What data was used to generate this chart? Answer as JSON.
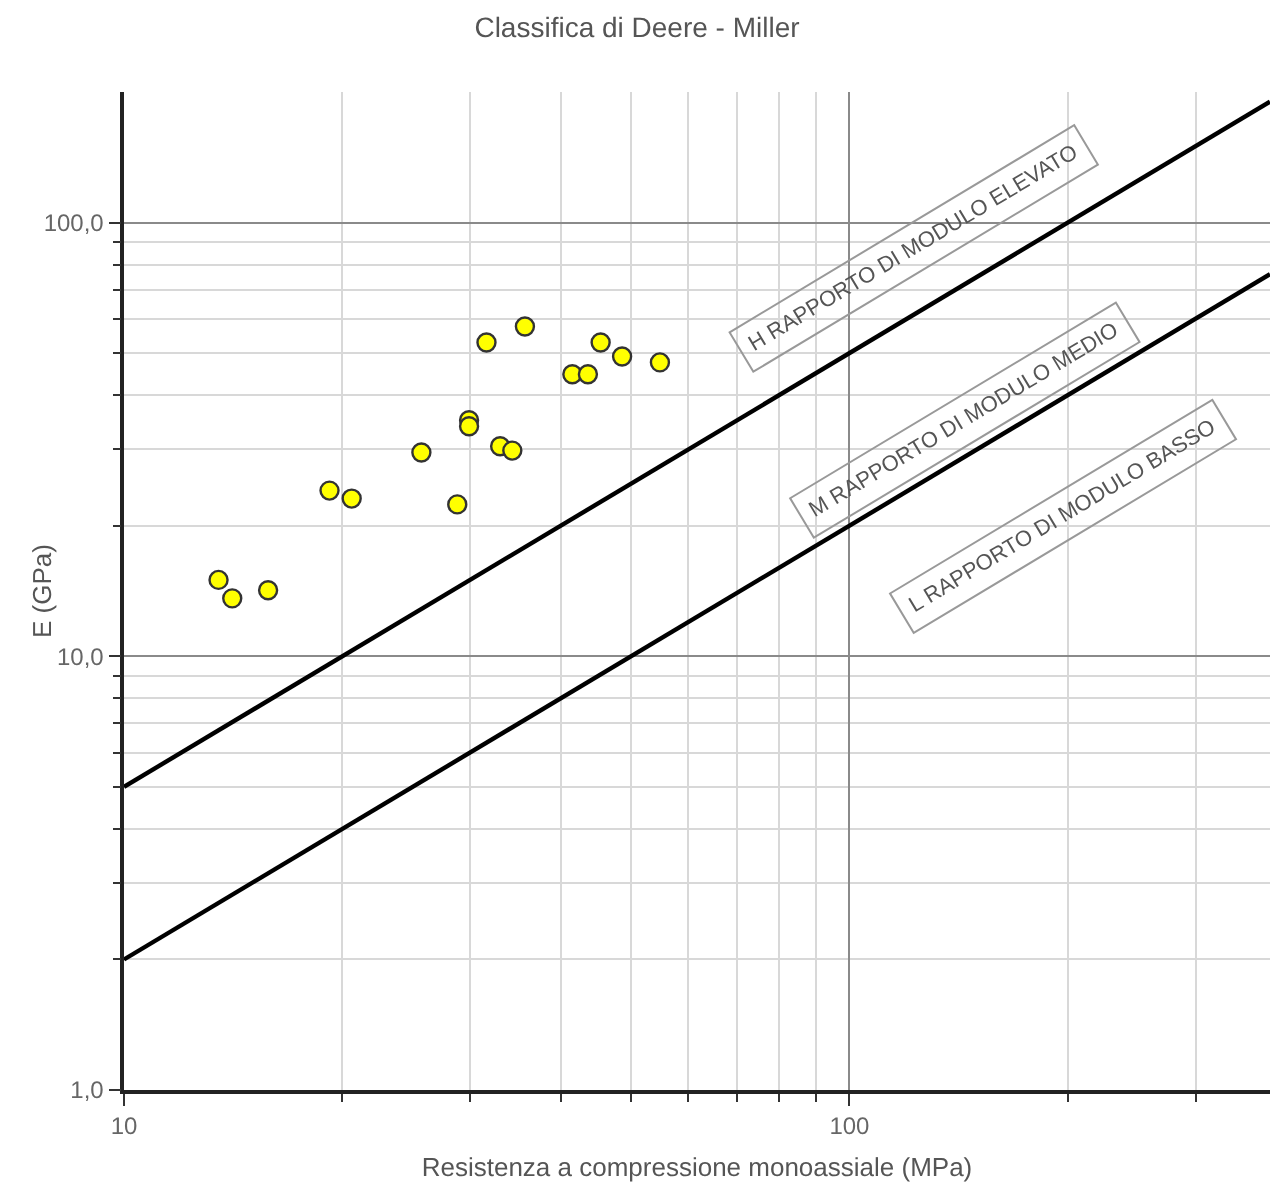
{
  "chart_data": {
    "type": "scatter",
    "title": "Classifica di Deere - Miller",
    "xlabel": "Resistenza a compressione monoassiale (MPa)",
    "ylabel": "E (GPa)",
    "log": "xy",
    "grid": true,
    "xlim": [
      10,
      380
    ],
    "ylim": [
      1,
      200
    ],
    "xticks": [
      {
        "value": 10,
        "label": "10"
      },
      {
        "value": 100,
        "label": "100"
      }
    ],
    "yticks": [
      {
        "value": 1,
        "label": "1,0"
      },
      {
        "value": 10,
        "label": "10,0"
      },
      {
        "value": 100,
        "label": "100,0"
      }
    ],
    "series": [
      {
        "marker": "circle",
        "color": "#ffff00",
        "x": [
          13.5,
          14.1,
          15.8,
          19.2,
          20.6,
          25.7,
          28.8,
          29.9,
          29.9,
          31.6,
          33.0,
          34.3,
          35.7,
          41.5,
          43.6,
          45.4,
          48.6,
          54.8
        ],
        "values": [
          15.0,
          13.6,
          14.2,
          24.1,
          23.1,
          29.5,
          22.4,
          35.0,
          33.9,
          52.9,
          30.5,
          29.8,
          57.6,
          44.7,
          44.7,
          52.9,
          49.1,
          47.6
        ]
      },
      {
        "type": "line",
        "color": "#000000",
        "x": [
          10,
          380
        ],
        "values": [
          5,
          190
        ]
      },
      {
        "type": "line",
        "color": "#000000",
        "x": [
          10,
          380
        ],
        "values": [
          2,
          76
        ]
      }
    ],
    "annotations": [
      "H RAPPORTO DI MODULO ELEVATO",
      "M RAPPORTO DI MODULO MEDIO",
      "L RAPPORTO DI MODULO BASSO"
    ]
  }
}
